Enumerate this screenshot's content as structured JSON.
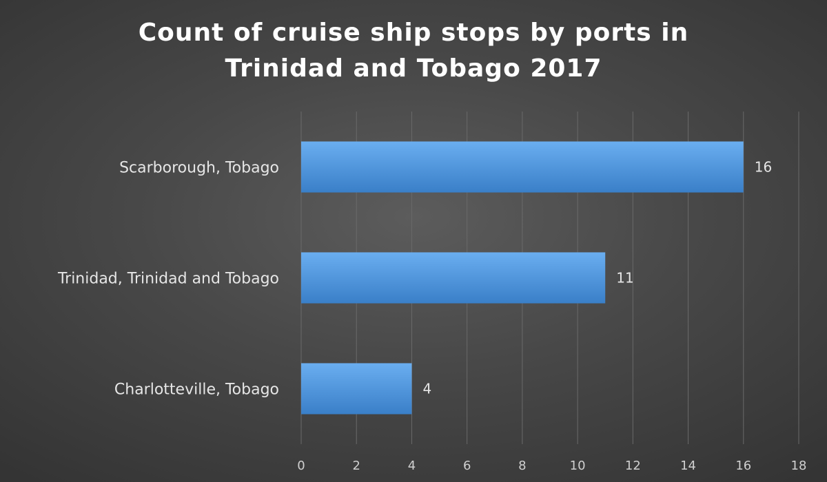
{
  "chart_data": {
    "type": "bar",
    "orientation": "horizontal",
    "title_lines": [
      "Count of cruise ship stops by ports in",
      "Trinidad and Tobago 2017"
    ],
    "categories": [
      "Scarborough, Tobago",
      "Trinidad, Trinidad and Tobago",
      "Charlotteville, Tobago"
    ],
    "values": [
      16,
      11,
      4
    ],
    "xlim": [
      0,
      18
    ],
    "xticks": [
      0,
      2,
      4,
      6,
      8,
      10,
      12,
      14,
      16,
      18
    ],
    "data_labels": true,
    "grid": "vertical",
    "legend": "none",
    "colors": {
      "bar_top": "#6aaef0",
      "bar_bottom": "#3a7fc8",
      "gridline": "#6a6a6a",
      "text": "#e6e6e6"
    }
  }
}
